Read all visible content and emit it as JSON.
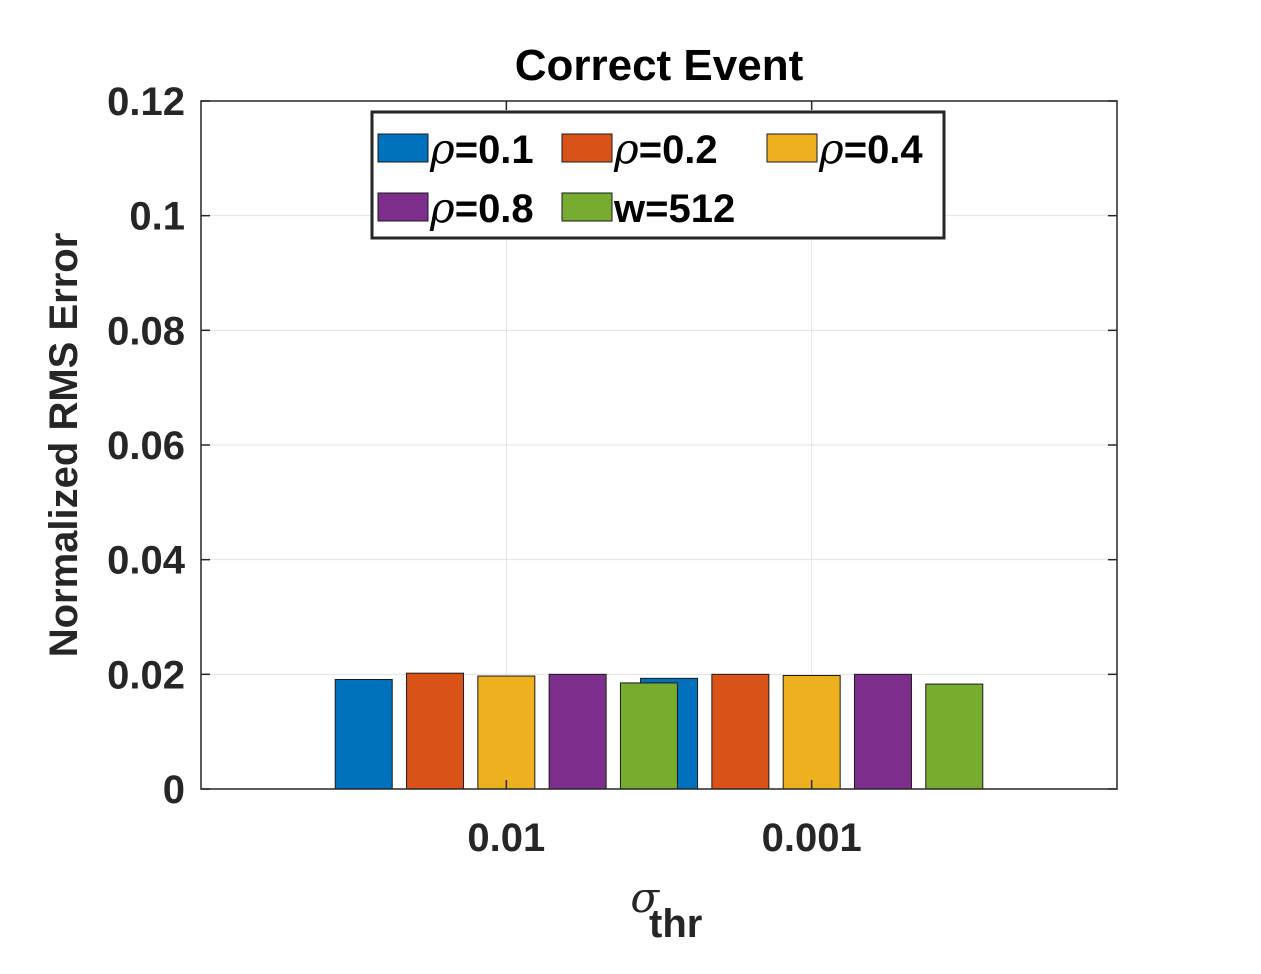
{
  "chart_data": {
    "type": "bar",
    "title": "Correct Event",
    "xlabel": {
      "symbol": "σ",
      "subscript": "thr"
    },
    "ylabel": "Normalized RMS Error",
    "categories": [
      "0.01",
      "0.001"
    ],
    "ylim": [
      0,
      0.12
    ],
    "yticks": [
      "0",
      "0.02",
      "0.04",
      "0.06",
      "0.08",
      "0.1",
      "0.12"
    ],
    "grid": true,
    "legend_position": "top-center",
    "series": [
      {
        "name": "ρ=0.1",
        "symbol": "ρ",
        "suffix": "=0.1",
        "color": "#0072BD",
        "values": [
          0.0191,
          0.0193
        ]
      },
      {
        "name": "ρ=0.2",
        "symbol": "ρ",
        "suffix": "=0.2",
        "color": "#D95319",
        "values": [
          0.0202,
          0.02
        ]
      },
      {
        "name": "ρ=0.4",
        "symbol": "ρ",
        "suffix": "=0.4",
        "color": "#EDB120",
        "values": [
          0.0197,
          0.0198
        ]
      },
      {
        "name": "ρ=0.8",
        "symbol": "ρ",
        "suffix": "=0.8",
        "color": "#7E2F8E",
        "values": [
          0.02,
          0.02
        ]
      },
      {
        "name": "w=512",
        "symbol": "",
        "suffix": "w=512",
        "color": "#77AC30",
        "values": [
          0.0185,
          0.0183
        ]
      }
    ]
  }
}
